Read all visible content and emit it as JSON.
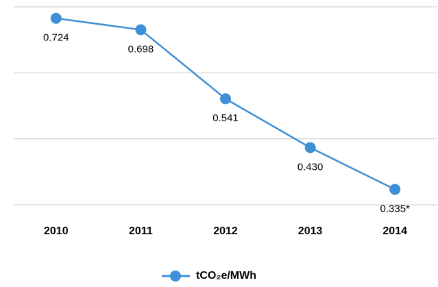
{
  "chart_data": {
    "type": "line",
    "categories": [
      "2010",
      "2011",
      "2012",
      "2013",
      "2014"
    ],
    "series": [
      {
        "name": "tCO₂e/MWh",
        "color": "#3d8fd6",
        "values": [
          0.724,
          0.698,
          0.541,
          0.43,
          0.335
        ],
        "value_labels": [
          "0.724",
          "0.698",
          "0.541",
          "0.430",
          "0.335*"
        ]
      }
    ],
    "ylim": [
      0.3,
      0.75
    ],
    "yticks": [
      0.3,
      0.45,
      0.6,
      0.75
    ],
    "grid": true,
    "legend": "bottom"
  }
}
